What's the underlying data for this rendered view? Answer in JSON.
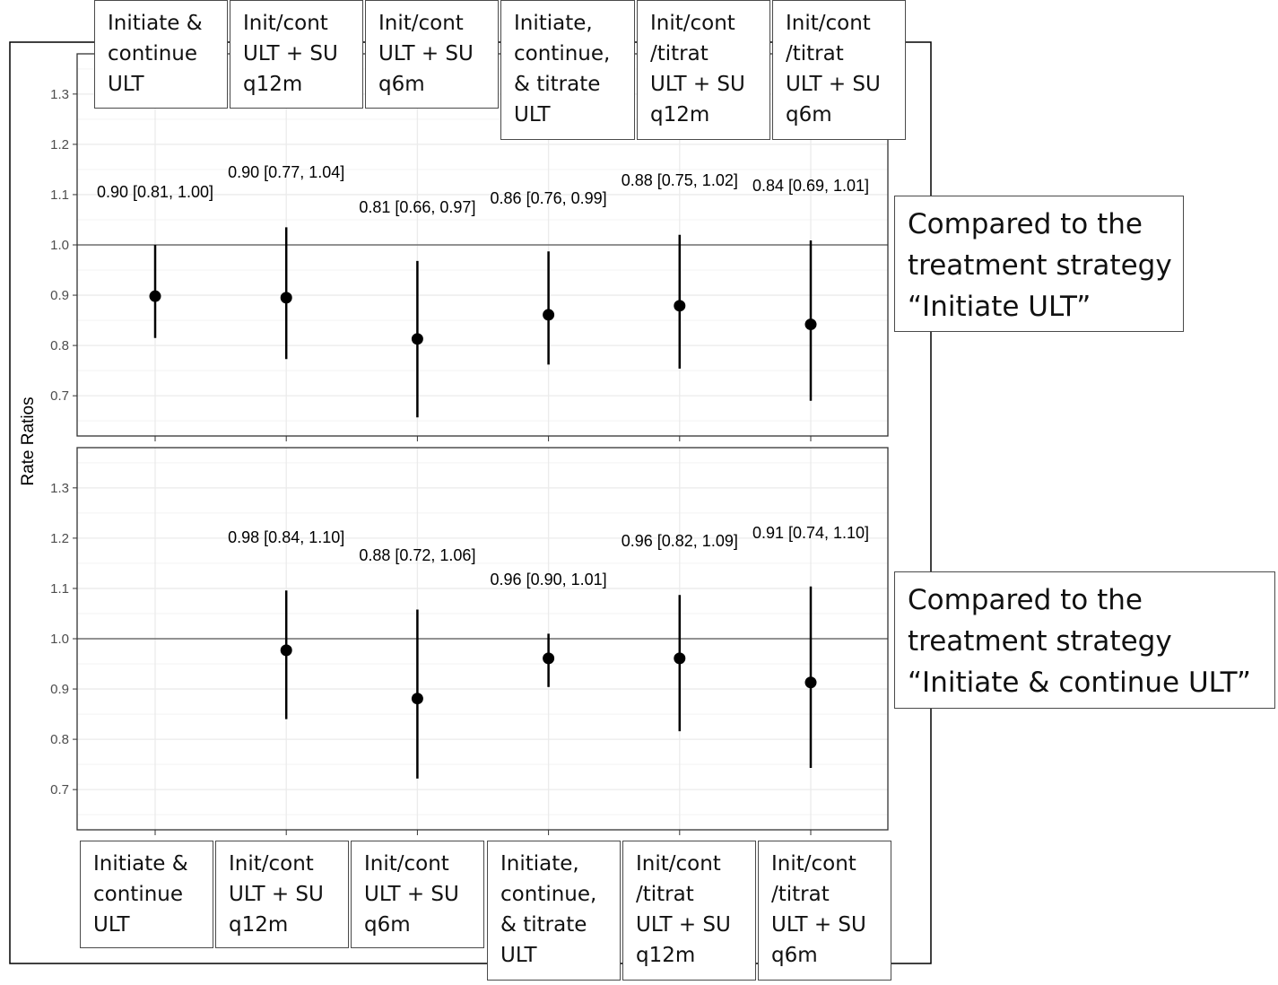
{
  "y_axis_label": "Rate Ratios",
  "colors": {
    "reference_line": "#555555",
    "grid": "#ebebeb",
    "marker": "#000000",
    "frame": "#333333"
  },
  "comparison_labels": [
    "Compared to the\ntreatment strategy\n“Initiate ULT”",
    "Compared to the\ntreatment strategy\n“Initiate & continue ULT”"
  ],
  "top_category_labels": [
    "Initiate &\ncontinue\nULT",
    "Init/cont\nULT + SU\nq12m",
    "Init/cont\nULT + SU\nq6m",
    "Initiate,\ncontinue,\n& titrate\nULT",
    "Init/cont\n/titrat\nULT + SU\nq12m",
    "Init/cont\n/titrat\nULT + SU\nq6m"
  ],
  "bottom_category_labels": [
    "Initiate &\ncontinue\nULT",
    "Init/cont\nULT + SU\nq12m",
    "Init/cont\nULT + SU\nq6m",
    "Initiate,\ncontinue,\n& titrate\nULT",
    "Init/cont\n/titrat\nULT + SU\nq12m",
    "Init/cont\n/titrat\nULT + SU\nq6m"
  ],
  "chart_data": [
    {
      "type": "scatter",
      "ylabel": "Rate Ratios",
      "ylim": [
        0.62,
        1.38
      ],
      "yticks": [
        "0.7",
        "0.8",
        "0.9",
        "1.0",
        "1.1",
        "1.2",
        "1.3"
      ],
      "reference_line": 1.0,
      "grid": true,
      "categories": [
        "Initiate & continue ULT",
        "Init/cont ULT + SU q12m",
        "Init/cont ULT + SU q6m",
        "Initiate, continue, & titrate ULT",
        "Init/cont /titrat ULT + SU q12m",
        "Init/cont /titrat ULT + SU q6m"
      ],
      "points": [
        {
          "x": 1,
          "y": 0.898,
          "lower": 0.815,
          "upper": 1.0,
          "label": "0.90 [0.81, 1.00]"
        },
        {
          "x": 2,
          "y": 0.895,
          "lower": 0.773,
          "upper": 1.035,
          "label": "0.90 [0.77, 1.04]"
        },
        {
          "x": 3,
          "y": 0.813,
          "lower": 0.657,
          "upper": 0.968,
          "label": "0.81 [0.66, 0.97]"
        },
        {
          "x": 4,
          "y": 0.861,
          "lower": 0.762,
          "upper": 0.987,
          "label": "0.86 [0.76, 0.99]"
        },
        {
          "x": 5,
          "y": 0.879,
          "lower": 0.754,
          "upper": 1.02,
          "label": "0.88 [0.75, 1.02]"
        },
        {
          "x": 6,
          "y": 0.842,
          "lower": 0.69,
          "upper": 1.009,
          "label": "0.84 [0.69, 1.01]"
        }
      ]
    },
    {
      "type": "scatter",
      "ylabel": "Rate Ratios",
      "ylim": [
        0.62,
        1.38
      ],
      "yticks": [
        "0.7",
        "0.8",
        "0.9",
        "1.0",
        "1.1",
        "1.2",
        "1.3"
      ],
      "reference_line": 1.0,
      "grid": true,
      "categories": [
        "Initiate & continue ULT",
        "Init/cont ULT + SU q12m",
        "Init/cont ULT + SU q6m",
        "Initiate, continue, & titrate ULT",
        "Init/cont /titrat ULT + SU q12m",
        "Init/cont /titrat ULT + SU q6m"
      ],
      "points": [
        {
          "x": 2,
          "y": 0.977,
          "lower": 0.84,
          "upper": 1.096,
          "label": "0.98 [0.84, 1.10]"
        },
        {
          "x": 3,
          "y": 0.881,
          "lower": 0.722,
          "upper": 1.058,
          "label": "0.88 [0.72, 1.06]"
        },
        {
          "x": 4,
          "y": 0.961,
          "lower": 0.904,
          "upper": 1.01,
          "label": "0.96 [0.90, 1.01]"
        },
        {
          "x": 5,
          "y": 0.961,
          "lower": 0.816,
          "upper": 1.087,
          "label": "0.96 [0.82, 1.09]"
        },
        {
          "x": 6,
          "y": 0.913,
          "lower": 0.743,
          "upper": 1.104,
          "label": "0.91 [0.74, 1.10]"
        }
      ]
    }
  ]
}
